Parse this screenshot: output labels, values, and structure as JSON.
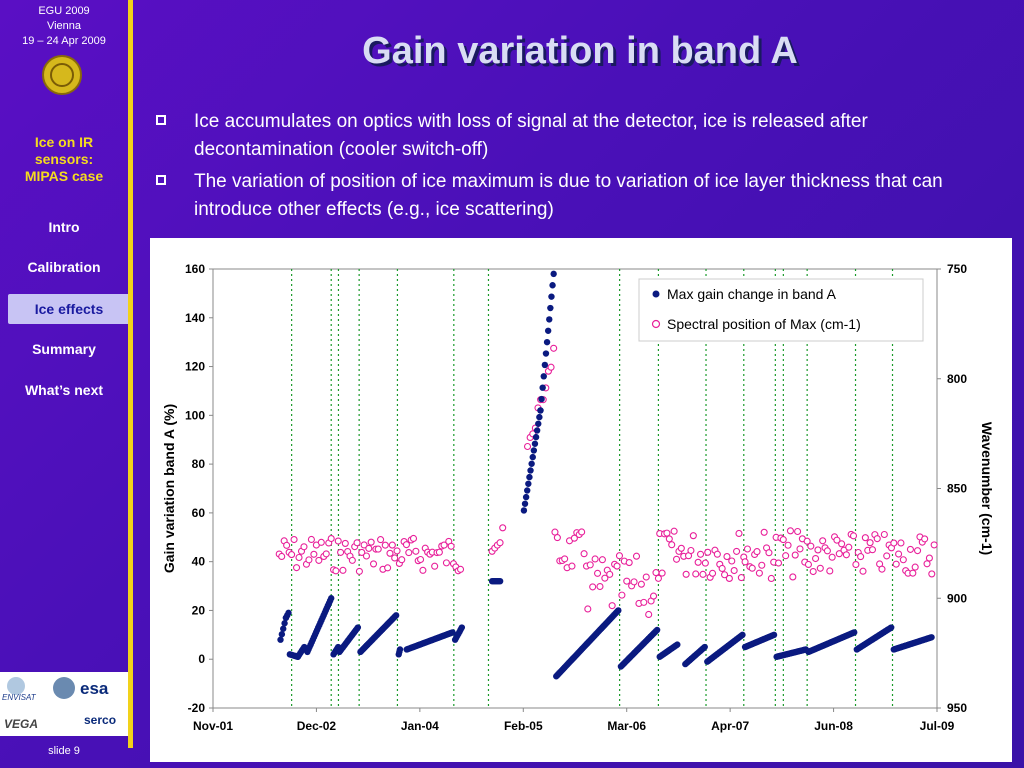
{
  "sidebar": {
    "conference": [
      "EGU 2009",
      "Vienna",
      "19 – 24 Apr 2009"
    ],
    "topic": [
      "Ice on IR",
      "sensors:",
      "MIPAS case"
    ],
    "nav": [
      "Intro",
      "Calibration",
      "Ice effects",
      "Summary",
      "What’s next"
    ],
    "active_nav": "Ice effects",
    "logos": [
      "ENVISAT",
      "esa",
      "VEGA",
      "serco"
    ],
    "slide": "slide 9"
  },
  "title": "Gain variation in band A",
  "bullets": [
    "Ice accumulates on optics with loss of signal at the detector, ice is released after decontamination (cooler switch-off)",
    "The variation of position of ice maximum is due to variation of ice layer thickness that can introduce other effects (e.g., ice scattering)"
  ],
  "chart_data": {
    "type": "scatter",
    "xlabel": "",
    "ylabel": "Gain variation band A (%)",
    "ylabel_right": "Wavenumber (cm-1)",
    "x_ticks": [
      "Nov-01",
      "Dec-02",
      "Jan-04",
      "Feb-05",
      "Mar-06",
      "Apr-07",
      "Jun-08",
      "Jul-09"
    ],
    "xlim": [
      "2001-11",
      "2009-07"
    ],
    "ylim": [
      -20,
      160
    ],
    "y_ticks": [
      -20,
      0,
      20,
      40,
      60,
      80,
      100,
      120,
      140,
      160
    ],
    "y2lim": [
      950,
      750
    ],
    "y2_ticks": [
      750,
      800,
      850,
      900,
      950
    ],
    "legend_position": "top-right",
    "grid": false,
    "decontamination_lines": [
      "2002-09-01",
      "2003-02-01",
      "2003-03-01",
      "2003-05-20",
      "2003-10-15",
      "2004-05-20",
      "2004-10-01",
      "2006-02-20",
      "2006-07-20",
      "2007-01-20",
      "2007-06-15",
      "2007-10-15",
      "2007-11-15",
      "2008-02-15",
      "2008-08-20",
      "2009-01-10"
    ],
    "series": [
      {
        "name": "Max gain change in band A",
        "color": "#0a1a80",
        "marker": "filled-circle",
        "axis": "left",
        "segments": [
          [
            [
              "2002-07-20",
              8
            ],
            [
              "2002-08-10",
              17
            ],
            [
              "2002-08-20",
              19
            ]
          ],
          [
            [
              "2002-08-25",
              2
            ],
            [
              "2002-09-25",
              1
            ],
            [
              "2002-10-20",
              5
            ]
          ],
          [
            [
              "2002-11-01",
              3
            ],
            [
              "2003-02-01",
              25
            ]
          ],
          [
            [
              "2003-02-10",
              2
            ],
            [
              "2003-02-28",
              5
            ]
          ],
          [
            [
              "2003-03-05",
              3
            ],
            [
              "2003-05-15",
              13
            ]
          ],
          [
            [
              "2003-05-25",
              3
            ],
            [
              "2003-10-10",
              18
            ]
          ],
          [
            [
              "2003-10-20",
              2
            ],
            [
              "2003-10-25",
              4
            ]
          ],
          [
            [
              "2003-11-20",
              4
            ],
            [
              "2004-05-15",
              11
            ]
          ],
          [
            [
              "2004-05-25",
              8
            ],
            [
              "2004-06-20",
              13
            ]
          ],
          [
            [
              "2004-10-15",
              32
            ],
            [
              "2004-11-15",
              32
            ]
          ],
          [
            [
              "2005-02-15",
              61
            ],
            [
              "2005-04-20",
              102
            ],
            [
              "2005-06-10",
              158
            ]
          ],
          [
            [
              "2005-06-20",
              -7
            ],
            [
              "2006-02-15",
              20
            ]
          ],
          [
            [
              "2006-02-25",
              -3
            ],
            [
              "2006-07-15",
              12
            ]
          ],
          [
            [
              "2006-07-25",
              1
            ],
            [
              "2006-10-01",
              6
            ]
          ],
          [
            [
              "2006-11-01",
              -2
            ],
            [
              "2007-01-15",
              5
            ]
          ],
          [
            [
              "2007-01-25",
              -1
            ],
            [
              "2007-06-10",
              10
            ]
          ],
          [
            [
              "2007-06-20",
              5
            ],
            [
              "2007-10-10",
              10
            ]
          ],
          [
            [
              "2007-10-20",
              1
            ],
            [
              "2008-02-10",
              4
            ]
          ],
          [
            [
              "2008-02-20",
              3
            ],
            [
              "2008-08-15",
              11
            ]
          ],
          [
            [
              "2008-08-25",
              4
            ],
            [
              "2009-01-05",
              13
            ]
          ],
          [
            [
              "2009-01-15",
              4
            ],
            [
              "2009-06-10",
              9
            ]
          ]
        ]
      },
      {
        "name": "Spectral position of Max (cm-1)",
        "color": "#e8209a",
        "marker": "open-circle",
        "axis": "right",
        "clusters": [
          {
            "from": "2002-07-15",
            "to": "2003-02-01",
            "mean": 880,
            "spread": 5
          },
          {
            "from": "2003-02-10",
            "to": "2004-06-15",
            "mean": 880,
            "spread": 5
          },
          {
            "from": "2004-10-15",
            "to": "2004-11-25",
            "mean": 874,
            "spread": 4
          },
          {
            "from": "2005-03-01",
            "to": "2005-06-10",
            "mean": 810,
            "spread": 12
          },
          {
            "from": "2005-06-15",
            "to": "2005-10-15",
            "mean": 879,
            "spread": 6
          },
          {
            "from": "2005-10-20",
            "to": "2006-07-20",
            "mean": 895,
            "spread": 9
          },
          {
            "from": "2006-07-25",
            "to": "2007-06-15",
            "mean": 880,
            "spread": 7
          },
          {
            "from": "2007-06-20",
            "to": "2008-02-15",
            "mean": 880,
            "spread": 7
          },
          {
            "from": "2008-02-20",
            "to": "2009-06-20",
            "mean": 880,
            "spread": 6
          }
        ]
      }
    ]
  }
}
